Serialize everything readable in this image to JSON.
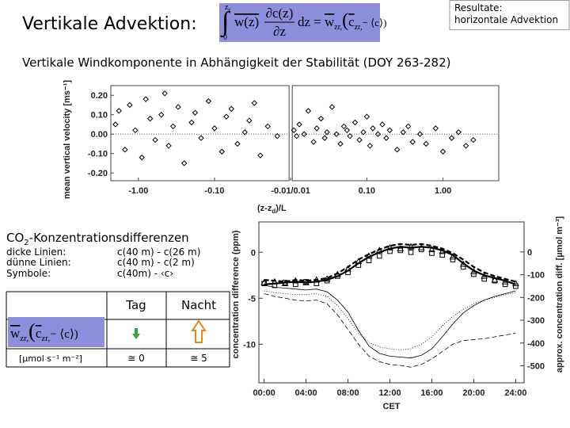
{
  "slide": {
    "title": "Vertikale Advektion:",
    "formula": {
      "integral": "∫",
      "upper": "z",
      "upper_sub": "r",
      "lower": "0",
      "integrand": "w(z)",
      "numerator": "∂c(z)",
      "denominator": "∂z",
      "equals": "dz =",
      "w": "w",
      "w_sub": "zr,",
      "open": "(",
      "c": "c",
      "c_sub": "zr,",
      "tail": "− ⟨c⟩)"
    },
    "results_note": [
      "Resultate:",
      "horizontale Advektion"
    ],
    "subtitle": "Vertikale Windkomponente in Abhängigkeit der Stabilität (DOY 263-282)",
    "co2_heading": [
      "CO",
      "2",
      "-Konzentrationsdifferenzen"
    ],
    "legend_rows": [
      [
        "dicke Linien:",
        "c(40 m) - c(26 m)"
      ],
      [
        "dünne Linien:",
        "c(40 m) - c(2 m)"
      ],
      [
        "Symbole:",
        "c(40m) - ‹c›"
      ]
    ],
    "table": {
      "header": [
        "Tag",
        "Nacht"
      ],
      "formula": {
        "w": "w",
        "w_sub": "zr,",
        "open": "(",
        "c": "c",
        "c_sub": "zr,",
        "tail": "− ⟨c⟩)"
      },
      "unit_row": [
        "[µmol s⁻¹ m⁻²]",
        "≅ 0",
        "≅ 5"
      ]
    }
  },
  "chart_data": [
    {
      "type": "scatter",
      "x_scale": "split-log",
      "x_label": [
        "(z-z",
        "d",
        ")/L"
      ],
      "y_label": "mean vertical velocity [ms⁻¹]",
      "xlim": [
        -2.3,
        5.4
      ],
      "ylim": [
        -0.24,
        0.25
      ],
      "xticks": [
        {
          "value": -1,
          "label": "-1.00"
        },
        {
          "value": -0.1,
          "label": "-0.10"
        },
        {
          "value": 0.01,
          "label": "-0.01/0.01"
        },
        {
          "value": 0.1,
          "label": "0.10"
        },
        {
          "value": 1,
          "label": "1.00"
        }
      ],
      "yticks": [
        {
          "value": 0.2,
          "label": "0.20"
        },
        {
          "value": 0.1,
          "label": "0.10"
        },
        {
          "value": 0,
          "label": "0.00"
        },
        {
          "value": -0.1,
          "label": "-0.10"
        },
        {
          "value": -0.2,
          "label": "-0.20"
        }
      ],
      "zero_line": true,
      "series": [
        {
          "color": "#000000",
          "marker": "diamond",
          "x": [
            -2.0,
            -1.8,
            -1.5,
            -1.3,
            -1.1,
            -0.9,
            -0.8,
            -0.7,
            -0.6,
            -0.5,
            -0.45,
            -0.4,
            -0.35,
            -0.3,
            -0.25,
            -0.2,
            -0.18,
            -0.15,
            -0.12,
            -0.1,
            -0.08,
            -0.07,
            -0.06,
            -0.05,
            -0.04,
            -0.035,
            -0.03,
            -0.025,
            -0.02,
            -0.015,
            0.011,
            0.012,
            0.013,
            0.015,
            0.017,
            0.02,
            0.022,
            0.025,
            0.028,
            0.03,
            0.035,
            0.04,
            0.045,
            0.05,
            0.055,
            0.06,
            0.07,
            0.08,
            0.09,
            0.1,
            0.11,
            0.12,
            0.14,
            0.16,
            0.18,
            0.2,
            0.25,
            0.3,
            0.35,
            0.4,
            0.5,
            0.6,
            0.8,
            1.0,
            1.3,
            1.6,
            2.0,
            2.5
          ],
          "values": [
            0.05,
            0.12,
            -0.08,
            0.15,
            0.02,
            -0.12,
            0.18,
            0.08,
            -0.03,
            0.1,
            0.21,
            -0.06,
            0.04,
            0.14,
            -0.15,
            0.06,
            0.11,
            -0.02,
            0.17,
            0.03,
            -0.09,
            0.09,
            0.13,
            -0.05,
            0.01,
            0.07,
            0.16,
            -0.11,
            0.04,
            -0.01,
            0.02,
            -0.01,
            0.05,
            0.0,
            0.12,
            -0.04,
            0.03,
            0.08,
            -0.02,
            0.01,
            0.14,
            0.0,
            -0.05,
            0.04,
            0.02,
            -0.01,
            0.06,
            -0.03,
            0.01,
            0.09,
            -0.06,
            0.03,
            0.0,
            0.05,
            -0.02,
            0.02,
            -0.08,
            0.01,
            0.04,
            -0.04,
            0.0,
            -0.05,
            0.03,
            -0.09,
            -0.02,
            0.01,
            -0.06,
            -0.03
          ]
        }
      ]
    },
    {
      "type": "line",
      "x_label": "CET",
      "y_label": "concentration difference (ppm)",
      "y2_label": "approx. concentration diff. [µmol m⁻³]",
      "xlim": [
        -0.5,
        24.8
      ],
      "ylim": [
        -14.2,
        3.3
      ],
      "y2lim": [
        -575,
        132
      ],
      "xticks": [
        {
          "value": 0,
          "label": "00:00"
        },
        {
          "value": 4,
          "label": "04:00"
        },
        {
          "value": 8,
          "label": "08:00"
        },
        {
          "value": 12,
          "label": "12:00"
        },
        {
          "value": 16,
          "label": "16:00"
        },
        {
          "value": 20,
          "label": "20:00"
        },
        {
          "value": 24,
          "label": "24:00"
        }
      ],
      "yticks": [
        0,
        -5,
        -10
      ],
      "y2ticks": [
        0,
        -100,
        -200,
        -300,
        -400,
        -500
      ],
      "x": [
        0,
        1,
        2,
        3,
        4,
        5,
        6,
        7,
        8,
        9,
        10,
        11,
        12,
        13,
        14,
        15,
        16,
        17,
        18,
        19,
        20,
        21,
        22,
        23,
        24
      ],
      "series": [
        {
          "color": "#000000",
          "width": 2.2,
          "dash": "none",
          "values": [
            -3.5,
            -3.4,
            -3.3,
            -3.2,
            -3.3,
            -3.2,
            -3.0,
            -2.6,
            -2.0,
            -1.2,
            -0.5,
            0.0,
            0.4,
            0.6,
            0.5,
            0.6,
            0.5,
            0.2,
            -0.3,
            -1.2,
            -2.0,
            -2.5,
            -2.8,
            -3.1,
            -3.5
          ]
        },
        {
          "color": "#000000",
          "width": 2.2,
          "dash": "6 3",
          "values": [
            -3.0,
            -3.1,
            -3.2,
            -3.0,
            -3.1,
            -3.0,
            -2.8,
            -2.3,
            -1.6,
            -0.8,
            -0.2,
            0.3,
            0.7,
            0.9,
            0.8,
            0.9,
            0.7,
            0.4,
            -0.1,
            -0.8,
            -1.6,
            -2.2,
            -2.6,
            -2.9,
            -3.2
          ]
        },
        {
          "color": "#000000",
          "width": 0.8,
          "dash": "none",
          "values": [
            -3.6,
            -3.8,
            -3.9,
            -4.0,
            -4.1,
            -4.0,
            -4.3,
            -5.2,
            -6.5,
            -8.5,
            -10.2,
            -11.0,
            -11.3,
            -11.4,
            -11.5,
            -11.2,
            -10.5,
            -9.2,
            -7.8,
            -6.6,
            -5.8,
            -5.2,
            -4.8,
            -4.5,
            -4.2
          ]
        },
        {
          "color": "#000000",
          "width": 0.8,
          "dash": "6 3",
          "values": [
            -4.5,
            -4.8,
            -5.0,
            -5.2,
            -5.3,
            -5.2,
            -5.6,
            -6.8,
            -8.4,
            -10.0,
            -11.3,
            -11.9,
            -12.2,
            -12.3,
            -12.5,
            -12.2,
            -11.6,
            -10.8,
            -10.0,
            -9.6,
            -9.5,
            -9.4,
            -9.2,
            -9.0,
            -8.8
          ]
        },
        {
          "color": "#000000",
          "width": 0.8,
          "dash": "1 2",
          "values": [
            -4.2,
            -4.4,
            -4.5,
            -4.6,
            -4.6,
            -4.5,
            -4.8,
            -5.8,
            -7.2,
            -8.8,
            -9.8,
            -10.3,
            -10.5,
            -10.6,
            -10.5,
            -10.0,
            -9.2,
            -8.0,
            -7.0,
            -6.2,
            -5.6,
            -5.2,
            -4.9,
            -4.6,
            -4.4
          ]
        },
        {
          "color": "#000000",
          "marker": "triangle",
          "values": [
            -3.3,
            -3.2,
            -3.4,
            -3.1,
            -3.3,
            -3.0,
            -2.9,
            -2.4,
            -1.8,
            -1.0,
            -0.4,
            0.2,
            0.5,
            0.4,
            0.6,
            0.5,
            0.3,
            0.1,
            -0.5,
            -1.3,
            -2.1,
            -2.6,
            -3.0,
            -3.2,
            -3.4
          ]
        },
        {
          "color": "#000000",
          "marker": "square",
          "values": [
            -3.4,
            -3.6,
            -3.3,
            -3.5,
            -3.2,
            -3.4,
            -3.1,
            -2.6,
            -2.2,
            -1.4,
            -0.9,
            -0.4,
            0.1,
            0.2,
            0.0,
            0.3,
            -0.1,
            -0.3,
            -0.8,
            -1.6,
            -2.4,
            -2.9,
            -3.1,
            -3.5,
            -3.7
          ]
        }
      ]
    }
  ]
}
